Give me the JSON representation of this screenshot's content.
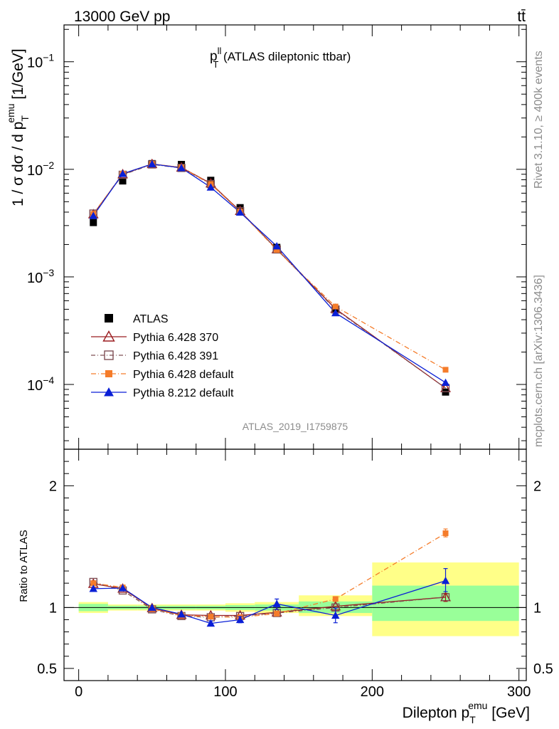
{
  "header": {
    "energy_label": "13000 GeV pp",
    "process_label": "tt̄"
  },
  "side": {
    "rivet_label": "Rivet 3.1.10, ≥ 400k events",
    "mcplots_label": "mcplots.cern.ch [arXiv:1306.3436]"
  },
  "chart_data": {
    "type": "line",
    "title_main": "p",
    "title_sup": "ll",
    "title_sub": "T",
    "title_rest": " (ATLAS dileptonic ttbar)",
    "analysis_id": "ATLAS_2019_I1759875",
    "ylabel": "1 / σ dσ / d p",
    "ylabel_sub": "T",
    "ylabel_sup": "emu",
    "ylabel_unit": " [1/GeV]",
    "xlabel": "Dilepton p",
    "xlabel_sub": "T",
    "xlabel_sup": "emu",
    "xlabel_unit": " [GeV]",
    "ratio_ylabel": "Ratio to ATLAS",
    "xlim": [
      -10,
      305
    ],
    "ylim_log": [
      2.5e-05,
      0.22
    ],
    "ratio_ylim": [
      0.4,
      2.3
    ],
    "x_ticks": [
      0,
      100,
      200,
      300
    ],
    "x_tick_labels": [
      "0",
      "100",
      "200",
      "300"
    ],
    "y_ticks": [
      {
        "value": 0.1,
        "base": "10",
        "exp": "−1"
      },
      {
        "value": 0.01,
        "base": "10",
        "exp": "−2"
      },
      {
        "value": 0.001,
        "base": "10",
        "exp": "−3"
      },
      {
        "value": 0.0001,
        "base": "10",
        "exp": "−4"
      }
    ],
    "ratio_ticks": [
      {
        "value": 0.5,
        "label": "0.5"
      },
      {
        "value": 1,
        "label": "1"
      },
      {
        "value": 2,
        "label": "2"
      }
    ],
    "bins": [
      [
        0,
        20
      ],
      [
        20,
        40
      ],
      [
        40,
        60
      ],
      [
        60,
        80
      ],
      [
        80,
        100
      ],
      [
        100,
        120
      ],
      [
        120,
        150
      ],
      [
        150,
        200
      ],
      [
        200,
        300
      ]
    ],
    "x": [
      10,
      30,
      50,
      70,
      90,
      110,
      135,
      175,
      250
    ],
    "band_inner": [
      [
        0.97,
        1.03
      ],
      [
        0.985,
        1.015
      ],
      [
        0.985,
        1.015
      ],
      [
        0.985,
        1.015
      ],
      [
        0.985,
        1.015
      ],
      [
        0.98,
        1.02
      ],
      [
        0.975,
        1.025
      ],
      [
        0.955,
        1.05
      ],
      [
        0.89,
        1.18
      ]
    ],
    "band_outer": [
      [
        0.955,
        1.045
      ],
      [
        0.975,
        1.025
      ],
      [
        0.975,
        1.025
      ],
      [
        0.975,
        1.025
      ],
      [
        0.975,
        1.025
      ],
      [
        0.965,
        1.035
      ],
      [
        0.955,
        1.045
      ],
      [
        0.93,
        1.1
      ],
      [
        0.765,
        1.37
      ]
    ],
    "series": [
      {
        "name": "ATLAS",
        "marker": "square",
        "color": "#000000",
        "dash": "",
        "values": [
          0.0032,
          0.0078,
          0.0113,
          0.0111,
          0.0079,
          0.0044,
          0.00188,
          0.000495,
          8.5e-05
        ],
        "ratio": [
          1,
          1,
          1,
          1,
          1,
          1,
          1,
          1,
          1
        ]
      },
      {
        "name": "Pythia 6.428 370",
        "marker": "triangle-open",
        "color": "#9b1d20",
        "dash": "",
        "values": [
          0.00382,
          0.009,
          0.0112,
          0.0104,
          0.0074,
          0.0041,
          0.00181,
          0.000505,
          9.25e-05
        ],
        "ratio": [
          1.195,
          1.155,
          0.995,
          0.94,
          0.935,
          0.935,
          0.96,
          1.01,
          1.085
        ]
      },
      {
        "name": "Pythia 6.428 391",
        "marker": "square-open",
        "color": "#7f4f55",
        "dash": "6,3,1,3",
        "values": [
          0.00388,
          0.0089,
          0.0111,
          0.0103,
          0.0073,
          0.00408,
          0.0018,
          0.000498,
          9.25e-05
        ],
        "ratio": [
          1.21,
          1.14,
          0.985,
          0.93,
          0.92,
          0.93,
          0.955,
          1.0,
          1.085
        ]
      },
      {
        "name": "Pythia 6.428 default",
        "marker": "square-filled",
        "color": "#f57c2a",
        "dash": "7,3,1,3",
        "values": [
          0.00385,
          0.0091,
          0.0112,
          0.0104,
          0.0073,
          0.00405,
          0.00178,
          0.00053,
          0.000137
        ],
        "ratio": [
          1.2,
          1.165,
          0.99,
          0.935,
          0.925,
          0.92,
          0.95,
          1.07,
          1.61
        ]
      },
      {
        "name": "Pythia 8.212 default",
        "marker": "triangle-filled",
        "color": "#0a1fd6",
        "dash": "",
        "values": [
          0.0037,
          0.0091,
          0.0112,
          0.0103,
          0.0068,
          0.00398,
          0.00193,
          0.000462,
          0.000104
        ],
        "ratio": [
          1.155,
          1.16,
          1.0,
          0.945,
          0.87,
          0.9,
          1.03,
          0.935,
          1.22
        ]
      }
    ]
  }
}
